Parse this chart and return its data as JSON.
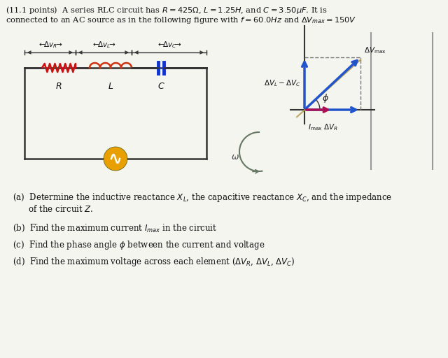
{
  "bg": "#f5f5f0",
  "text_color": "#111111",
  "circuit_color": "#333333",
  "resistor_color": "#cc1111",
  "inductor_color": "#cc3311",
  "capacitor_color": "#1133cc",
  "source_fill": "#e8a000",
  "arrow_blue": "#2255cc",
  "arrow_magenta": "#aa1155",
  "arrow_tan": "#b8a050",
  "arrow_gray": "#667766",
  "dashed_color": "#777777",
  "title1": "(11.1 points)  A series RLC circuit has $R = 425\\Omega$, $L = 1.25H$, and $C = 3.50\\mu F$. It is",
  "title2": "connected to an AC source as in the following figure with $f = 60.0Hz$ and $\\Delta V_{max} = 150V$",
  "q_a1": "(a)  Determine the inductive reactance $X_L$, the capacitive reactance $X_C$, and the impedance",
  "q_a2": "      of the circuit $Z$.",
  "q_b": "(b)  Find the maximum current $I_{max}$ in the circuit",
  "q_c": "(c)  Find the phase angle $\\phi$ between the current and voltage",
  "q_d": "(d)  Find the maximum voltage across each element ($\\Delta V_R$, $\\Delta V_L$, $\\Delta V_C$)"
}
